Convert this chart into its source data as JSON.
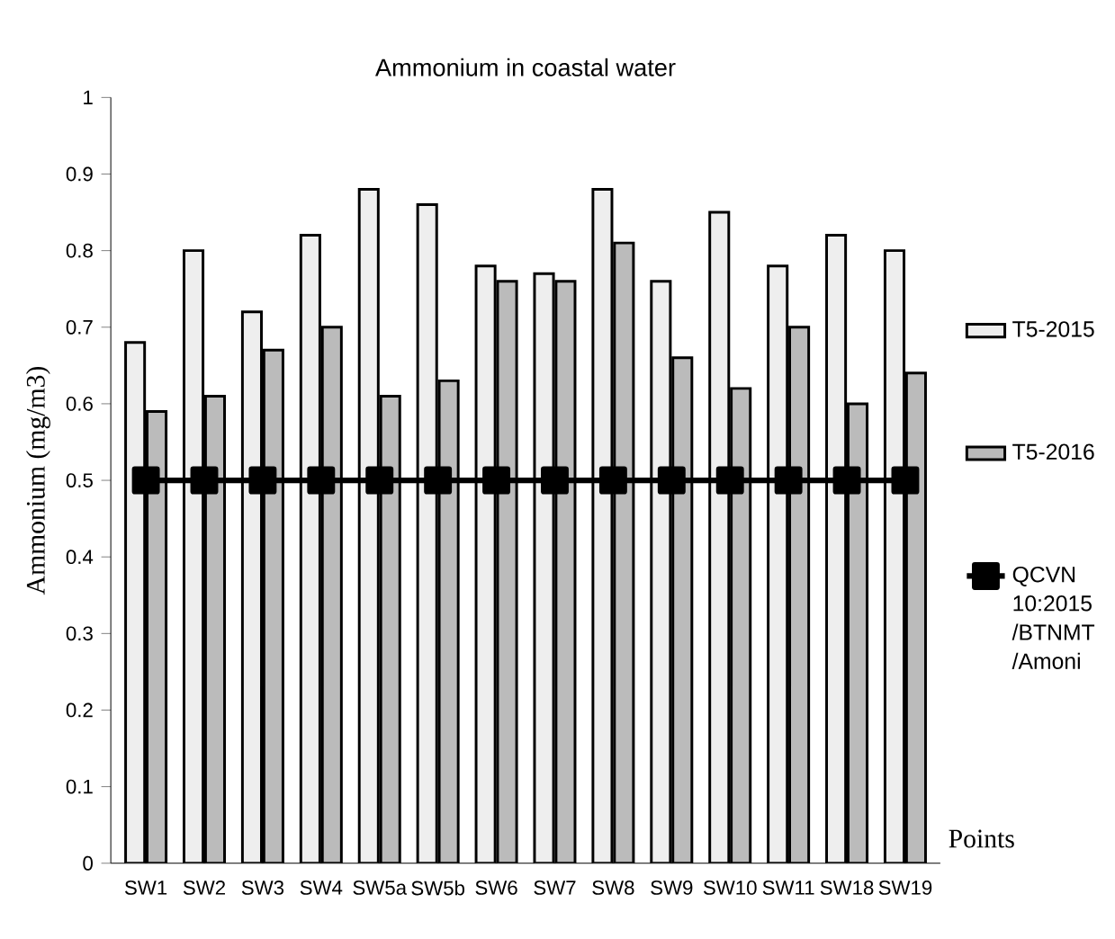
{
  "chart_data": {
    "type": "bar",
    "title": "Ammonium in coastal water",
    "xlabel": "Points",
    "ylabel": "Ammonium (mg/m3)",
    "categories": [
      "SW1",
      "SW2",
      "SW3",
      "SW4",
      "SW5a",
      "SW5b",
      "SW6",
      "SW7",
      "SW8",
      "SW9",
      "SW10",
      "SW11",
      "SW18",
      "SW19"
    ],
    "series": [
      {
        "name": "T5-2015",
        "color": "#eeeeee",
        "values": [
          0.68,
          0.8,
          0.72,
          0.82,
          0.88,
          0.86,
          0.78,
          0.77,
          0.88,
          0.76,
          0.85,
          0.78,
          0.82,
          0.8
        ]
      },
      {
        "name": "T5-2016",
        "color": "#bbbbbb",
        "values": [
          0.59,
          0.61,
          0.67,
          0.7,
          0.61,
          0.63,
          0.76,
          0.76,
          0.81,
          0.66,
          0.62,
          0.7,
          0.6,
          0.64
        ]
      },
      {
        "name": "QCVN 10:2015 /BTNMT /Amoni",
        "type": "line",
        "color": "#000000",
        "marker": "square",
        "values": [
          0.5,
          0.5,
          0.5,
          0.5,
          0.5,
          0.5,
          0.5,
          0.5,
          0.5,
          0.5,
          0.5,
          0.5,
          0.5,
          0.5
        ]
      }
    ],
    "ylim": [
      0,
      1
    ],
    "yticks": [
      0,
      0.1,
      0.2,
      0.3,
      0.4,
      0.5,
      0.6,
      0.7,
      0.8,
      0.9,
      1
    ],
    "legend": "right"
  }
}
